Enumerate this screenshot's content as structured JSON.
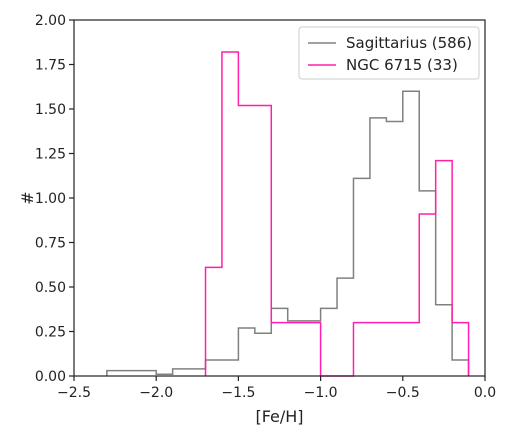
{
  "chart_data": {
    "type": "histogram",
    "xlabel": "[Fe/H]",
    "ylabel": "#",
    "xlim": [
      -2.5,
      0.0
    ],
    "ylim": [
      0.0,
      2.0
    ],
    "xticks": [
      -2.5,
      -2.0,
      -1.5,
      -1.0,
      -0.5,
      0.0
    ],
    "xtick_labels": [
      "−2.5",
      "−2.0",
      "−1.5",
      "−1.0",
      "−0.5",
      "0.0"
    ],
    "yticks": [
      0.0,
      0.25,
      0.5,
      0.75,
      1.0,
      1.25,
      1.5,
      1.75,
      2.0
    ],
    "ytick_labels": [
      "0.00",
      "0.25",
      "0.50",
      "0.75",
      "1.00",
      "1.25",
      "1.50",
      "1.75",
      "2.00"
    ],
    "grid": false,
    "legend_position": "top-right",
    "series": [
      {
        "name": "Sagittarius (586)",
        "color": "#808080",
        "bin_edges": [
          -2.3,
          -2.2,
          -2.1,
          -2.0,
          -1.9,
          -1.8,
          -1.7,
          -1.6,
          -1.5,
          -1.4,
          -1.3,
          -1.2,
          -1.1,
          -1.0,
          -0.9,
          -0.8,
          -0.7,
          -0.6,
          -0.5,
          -0.4,
          -0.3,
          -0.2,
          -0.1
        ],
        "values": [
          0.03,
          0.03,
          0.03,
          0.01,
          0.04,
          0.04,
          0.09,
          0.09,
          0.27,
          0.24,
          0.38,
          0.31,
          0.31,
          0.38,
          0.55,
          1.11,
          1.45,
          1.43,
          1.6,
          1.04,
          0.4,
          0.09
        ]
      },
      {
        "name": "NGC 6715 (33)",
        "color": "#ff1faa",
        "bin_edges": [
          -1.7,
          -1.6,
          -1.5,
          -1.4,
          -1.3,
          -1.2,
          -1.1,
          -1.0,
          -0.9,
          -0.8,
          -0.7,
          -0.6,
          -0.5,
          -0.4,
          -0.3,
          -0.2,
          -0.1
        ],
        "values": [
          0.61,
          1.82,
          1.52,
          1.52,
          0.3,
          0.3,
          0.3,
          0.0,
          0.0,
          0.3,
          0.3,
          0.3,
          0.3,
          0.91,
          1.21,
          0.3
        ]
      }
    ]
  }
}
